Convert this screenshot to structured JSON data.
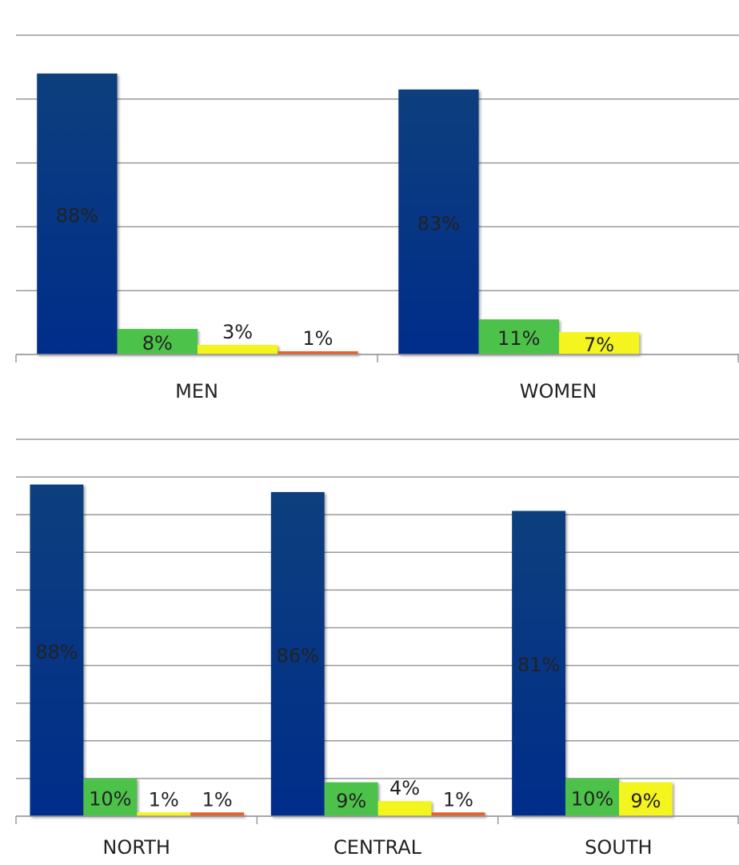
{
  "chart_data": [
    {
      "type": "bar",
      "categories": [
        "MEN",
        "WOMEN"
      ],
      "series": [
        {
          "color": "#0b3a86",
          "values": [
            88,
            83
          ],
          "value_labels": [
            "88%",
            "83%"
          ]
        },
        {
          "color": "#4cc24a",
          "values": [
            8,
            11
          ],
          "value_labels": [
            "8%",
            "11%"
          ]
        },
        {
          "color": "#f4f41e",
          "values": [
            3,
            7
          ],
          "value_labels": [
            "3%",
            "7%"
          ]
        },
        {
          "color": "#e0622c",
          "values": [
            1,
            null
          ],
          "value_labels": [
            "1%",
            null
          ]
        }
      ],
      "ylim": [
        0,
        100
      ],
      "yticks": [
        0,
        20,
        40,
        60,
        80,
        100
      ],
      "grid": true
    },
    {
      "type": "bar",
      "categories": [
        "NORTH",
        "CENTRAL",
        "SOUTH"
      ],
      "series": [
        {
          "color": "#0b3a86",
          "values": [
            88,
            86,
            81
          ],
          "value_labels": [
            "88%",
            "86%",
            "81%"
          ]
        },
        {
          "color": "#4cc24a",
          "values": [
            10,
            9,
            10
          ],
          "value_labels": [
            "10%",
            "9%",
            "10%"
          ]
        },
        {
          "color": "#f4f41e",
          "values": [
            1,
            4,
            9
          ],
          "value_labels": [
            "1%",
            "4%",
            "9%"
          ]
        },
        {
          "color": "#e0622c",
          "values": [
            1,
            1,
            null
          ],
          "value_labels": [
            "1%",
            "1%",
            null
          ]
        }
      ],
      "ylim": [
        0,
        100
      ],
      "yticks": [
        0,
        10,
        20,
        30,
        40,
        50,
        60,
        70,
        80,
        90,
        100
      ],
      "grid": true
    }
  ]
}
